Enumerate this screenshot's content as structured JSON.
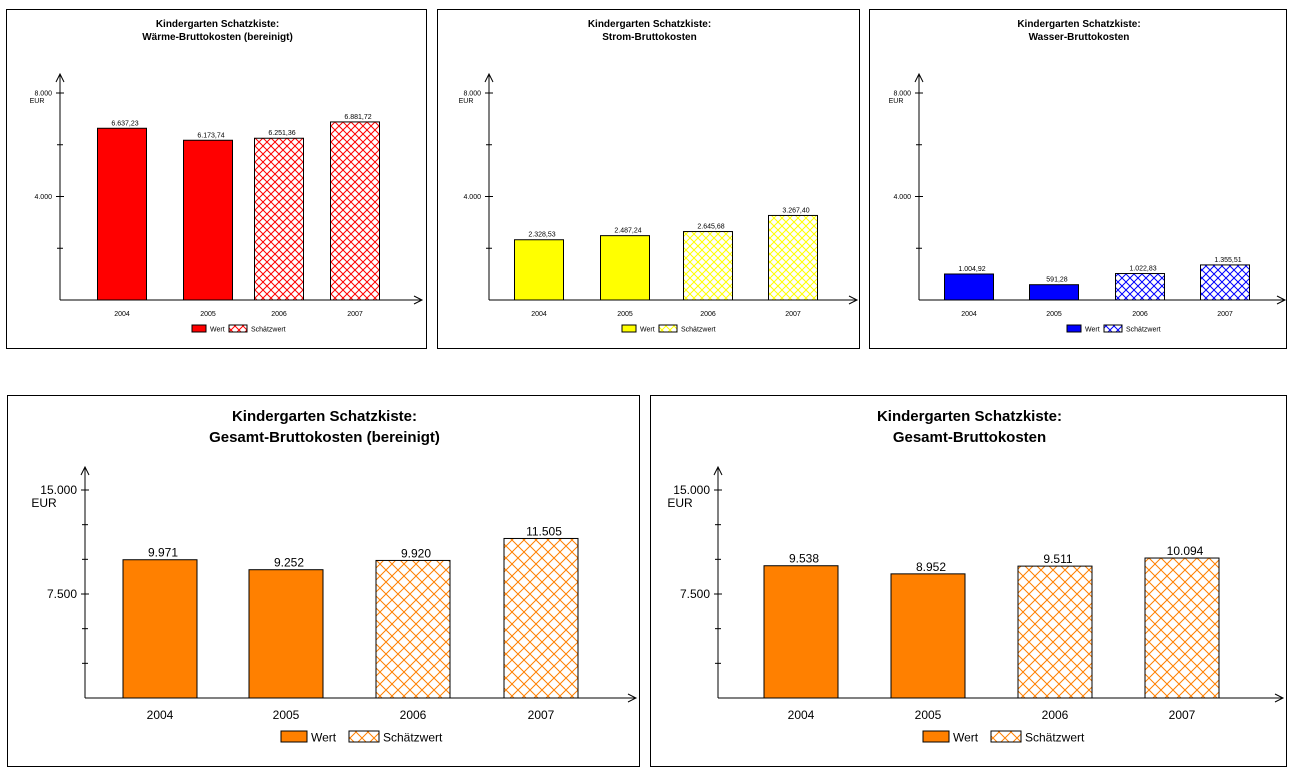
{
  "colors": {
    "heat": "#ff0000",
    "power": "#ffff00",
    "water": "#0000ff",
    "total": "#ff8000"
  },
  "chart_data": [
    {
      "type": "bar",
      "title_line1": "Kindergarten Schatzkiste:",
      "title_line2": "Wärme-Bruttokosten (bereinigt)",
      "unit": "EUR",
      "categories": [
        "2004",
        "2005",
        "2006",
        "2007"
      ],
      "values": [
        6637.23,
        6173.74,
        6251.36,
        6881.72
      ],
      "value_labels": [
        "6.637,23",
        "6.173,74",
        "6.251,36",
        "6.881,72"
      ],
      "estimated": [
        false,
        false,
        true,
        true
      ],
      "ylim": [
        0,
        8000
      ],
      "yticks": [
        4000,
        8000
      ],
      "ytick_labels": [
        "4.000",
        "8.000"
      ],
      "minor_ticks": [
        2000,
        6000
      ],
      "color": "#ff0000",
      "legend": [
        "Wert",
        "Schätzwert"
      ]
    },
    {
      "type": "bar",
      "title_line1": "Kindergarten Schatzkiste:",
      "title_line2": "Strom-Bruttokosten",
      "unit": "EUR",
      "categories": [
        "2004",
        "2005",
        "2006",
        "2007"
      ],
      "values": [
        2328.53,
        2487.24,
        2645.68,
        3267.4
      ],
      "value_labels": [
        "2.328,53",
        "2.487,24",
        "2.645,68",
        "3.267,40"
      ],
      "estimated": [
        false,
        false,
        true,
        true
      ],
      "ylim": [
        0,
        8000
      ],
      "yticks": [
        4000,
        8000
      ],
      "ytick_labels": [
        "4.000",
        "8.000"
      ],
      "minor_ticks": [
        2000,
        6000
      ],
      "color": "#ffff00",
      "legend": [
        "Wert",
        "Schätzwert"
      ]
    },
    {
      "type": "bar",
      "title_line1": "Kindergarten Schatzkiste:",
      "title_line2": "Wasser-Bruttokosten",
      "unit": "EUR",
      "categories": [
        "2004",
        "2005",
        "2006",
        "2007"
      ],
      "values": [
        1004.92,
        591.28,
        1022.83,
        1355.51
      ],
      "value_labels": [
        "1.004,92",
        "591,28",
        "1.022,83",
        "1.355,51"
      ],
      "estimated": [
        false,
        false,
        true,
        true
      ],
      "ylim": [
        0,
        8000
      ],
      "yticks": [
        4000,
        8000
      ],
      "ytick_labels": [
        "4.000",
        "8.000"
      ],
      "minor_ticks": [
        2000,
        6000
      ],
      "color": "#0000ff",
      "legend": [
        "Wert",
        "Schätzwert"
      ]
    },
    {
      "type": "bar",
      "title_line1": "Kindergarten Schatzkiste:",
      "title_line2": "Gesamt-Bruttokosten (bereinigt)",
      "unit": "EUR",
      "categories": [
        "2004",
        "2005",
        "2006",
        "2007"
      ],
      "values": [
        9971,
        9252,
        9920,
        11505
      ],
      "value_labels": [
        "9.971",
        "9.252",
        "9.920",
        "11.505"
      ],
      "estimated": [
        false,
        false,
        true,
        true
      ],
      "ylim": [
        0,
        15000
      ],
      "yticks": [
        7500,
        15000
      ],
      "ytick_labels": [
        "7.500",
        "15.000"
      ],
      "minor_ticks": [
        2500,
        5000,
        10000,
        12500
      ],
      "color": "#ff8000",
      "legend": [
        "Wert",
        "Schätzwert"
      ]
    },
    {
      "type": "bar",
      "title_line1": "Kindergarten Schatzkiste:",
      "title_line2": "Gesamt-Bruttokosten",
      "unit": "EUR",
      "categories": [
        "2004",
        "2005",
        "2006",
        "2007"
      ],
      "values": [
        9538,
        8952,
        9511,
        10094
      ],
      "value_labels": [
        "9.538",
        "8.952",
        "9.511",
        "10.094"
      ],
      "estimated": [
        false,
        false,
        true,
        true
      ],
      "ylim": [
        0,
        15000
      ],
      "yticks": [
        7500,
        15000
      ],
      "ytick_labels": [
        "7.500",
        "15.000"
      ],
      "minor_ticks": [
        2500,
        5000,
        10000,
        12500
      ],
      "color": "#ff8000",
      "legend": [
        "Wert",
        "Schätzwert"
      ]
    }
  ]
}
